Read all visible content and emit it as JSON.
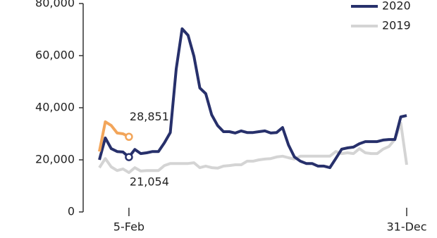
{
  "chart_data": {
    "type": "line",
    "x": [
      1,
      8,
      15,
      22,
      29,
      36,
      43,
      50,
      57,
      64,
      71,
      78,
      85,
      92,
      99,
      106,
      113,
      120,
      127,
      134,
      141,
      148,
      155,
      162,
      169,
      176,
      183,
      190,
      197,
      204,
      211,
      218,
      225,
      232,
      239,
      246,
      253,
      260,
      267,
      274,
      281,
      288,
      295,
      302,
      309,
      316,
      323,
      330,
      337,
      344,
      351,
      358,
      365
    ],
    "xlim": [
      1,
      365
    ],
    "xticks": [
      {
        "value": 36,
        "label": "5-Feb"
      },
      {
        "value": 365,
        "label": "31-Dec"
      }
    ],
    "ylim": [
      0,
      80000
    ],
    "yticks": [
      0,
      {
        "value": 20000,
        "label": "20,000"
      },
      {
        "value": 40000,
        "label": "40,000"
      },
      {
        "value": 60000,
        "label": "60,000"
      },
      {
        "value": 80000,
        "label": "80,000"
      }
    ],
    "legend": "top-right",
    "series": [
      {
        "name": "2020",
        "color": "#27306b",
        "values": [
          20000,
          28400,
          24300,
          23200,
          23000,
          21054,
          24000,
          22400,
          22700,
          23200,
          23200,
          26500,
          30500,
          54900,
          70300,
          67800,
          59700,
          47600,
          45400,
          37300,
          33200,
          30800,
          30800,
          30300,
          31100,
          30500,
          30500,
          30800,
          31100,
          30300,
          30500,
          32400,
          25700,
          21100,
          19500,
          18600,
          18600,
          17600,
          17600,
          17000,
          20500,
          24100,
          24600,
          24900,
          26200,
          27000,
          27000,
          27000,
          27600,
          27800,
          27800,
          36500,
          37000
        ],
        "value_labels": [
          null,
          null,
          null,
          null,
          null,
          "21,054",
          null,
          null,
          null,
          null,
          null,
          null,
          null,
          null,
          null,
          null,
          null,
          null,
          null,
          null,
          null,
          null,
          null,
          null,
          null,
          null,
          null,
          null,
          null,
          null,
          null,
          null,
          null,
          null,
          null,
          null,
          null,
          null,
          null,
          null,
          null,
          null,
          null,
          null,
          null,
          null,
          null,
          null,
          null,
          null,
          null,
          null,
          null
        ]
      },
      {
        "name": "2019",
        "color": "#d4d4d4",
        "values": [
          17000,
          20500,
          17300,
          15900,
          16500,
          15100,
          17000,
          15700,
          15900,
          15900,
          15900,
          17800,
          18600,
          18600,
          18600,
          18600,
          18900,
          17000,
          17600,
          17000,
          16800,
          17600,
          17800,
          18100,
          18100,
          19500,
          19500,
          20000,
          20300,
          20500,
          21100,
          21400,
          20800,
          20300,
          21400,
          21400,
          21400,
          21400,
          21400,
          21400,
          23200,
          22400,
          22700,
          22400,
          24300,
          22700,
          22400,
          22400,
          24100,
          25100,
          27800,
          34100,
          18100
        ]
      },
      {
        "color": "#f2a55a",
        "values": [
          23200,
          34600,
          33200,
          30300,
          30000,
          28851,
          null,
          null,
          null,
          null,
          null,
          null,
          null,
          null,
          null,
          null,
          null,
          null,
          null,
          null,
          null,
          null,
          null,
          null,
          null,
          null,
          null,
          null,
          null,
          null,
          null,
          null,
          null,
          null,
          null,
          null,
          null,
          null,
          null,
          null,
          null,
          null,
          null,
          null,
          null,
          null,
          null,
          null,
          null,
          null,
          null,
          null,
          null
        ],
        "value_labels": [
          null,
          null,
          null,
          null,
          null,
          "28,851",
          null,
          null,
          null,
          null,
          null,
          null,
          null,
          null,
          null,
          null,
          null,
          null,
          null,
          null,
          null,
          null,
          null,
          null,
          null,
          null,
          null,
          null,
          null,
          null,
          null,
          null,
          null,
          null,
          null,
          null,
          null,
          null,
          null,
          null,
          null,
          null,
          null,
          null,
          null,
          null,
          null,
          null,
          null,
          null,
          null,
          null,
          null
        ]
      }
    ]
  }
}
